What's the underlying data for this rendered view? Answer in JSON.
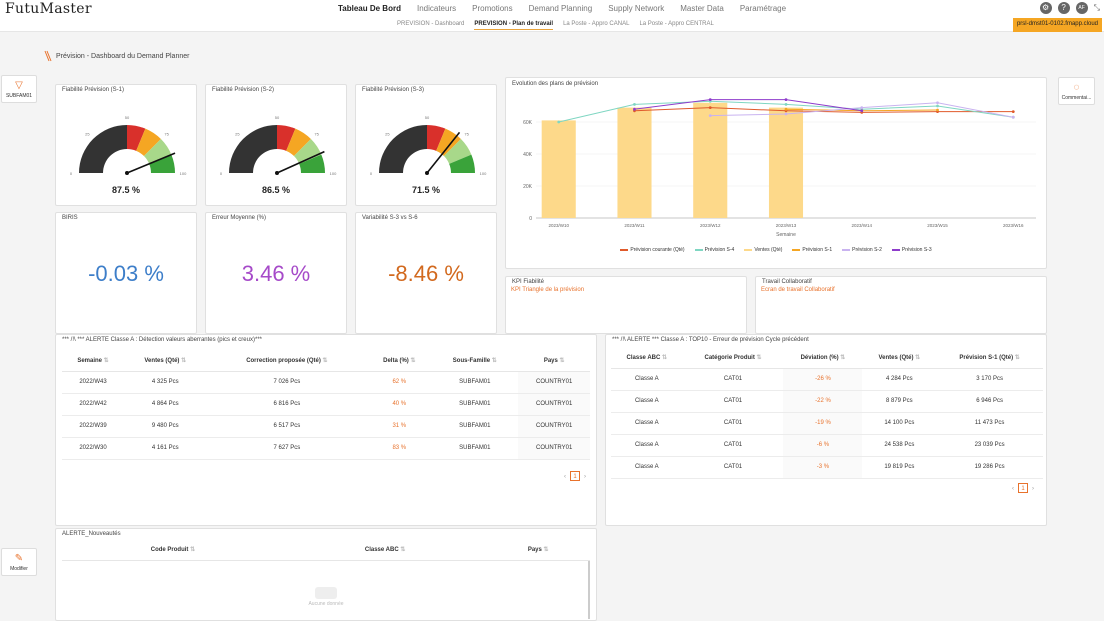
{
  "app": {
    "logo": "FutuMaster",
    "env": "prsl-dmst01-0102.fmapp.cloud",
    "user_initials": "AF"
  },
  "nav": {
    "items": [
      "Tableau De Bord",
      "Indicateurs",
      "Promotions",
      "Demand Planning",
      "Supply Network",
      "Master Data",
      "Paramétrage"
    ],
    "active": 0
  },
  "subtabs": {
    "items": [
      "PREVISION - Dashboard",
      "PREVISION - Plan de travail",
      "La Poste - Appro CANAL",
      "La Poste - Appro CENTRAL"
    ],
    "active": 1
  },
  "page": {
    "title": "Prévision - Dashboard du Demand Planner"
  },
  "side": {
    "filter_label": "SUBFAM01",
    "edit_label": "Modifier",
    "comment_label": "Commentai..."
  },
  "gauges": [
    {
      "title": "Fiabilité Prévision (S-1)",
      "value": 87.5,
      "display": "87.5 %"
    },
    {
      "title": "Fiabilité Prévision (S-2)",
      "value": 86.5,
      "display": "86.5 %"
    },
    {
      "title": "Fiabilité Prévision (S-3)",
      "value": 71.5,
      "display": "71.5 %"
    }
  ],
  "gauge_ticks": [
    "0",
    "25",
    "50",
    "75",
    "100"
  ],
  "gauge_colors": [
    "#333333",
    "#d9302b",
    "#f5a623",
    "#a8d88a",
    "#3aa33a"
  ],
  "kpis": [
    {
      "title": "BIRIS",
      "value": "-0.03 %",
      "color": "#3d7ec9"
    },
    {
      "title": "Erreur Moyenne (%)",
      "value": "3.46 %",
      "color": "#a64ac9"
    },
    {
      "title": "Variabilité S-3 vs S-6",
      "value": "-8.46 %",
      "color": "#d2691e"
    }
  ],
  "evol": {
    "title": "Evolution des plans de prévision"
  },
  "chart_data": {
    "type": "bar",
    "title": "Evolution des plans de prévision",
    "xlabel": "Semaine",
    "categories": [
      "2023/W10",
      "2023/W11",
      "2023/W12",
      "2023/W13",
      "2023/W14",
      "2023/W15",
      "2023/W16"
    ],
    "yticks": [
      "0",
      "20K",
      "40K",
      "60K"
    ],
    "ylim": [
      0,
      80000
    ],
    "series": [
      {
        "name": "Prévision courante (Qté)",
        "type": "line",
        "color": "#e05a2b",
        "values": [
          null,
          67000,
          69000,
          67000,
          66000,
          66500,
          66500
        ]
      },
      {
        "name": "Prévision S-4",
        "type": "line",
        "color": "#7fd6c2",
        "values": [
          60000,
          71000,
          73000,
          71000,
          68000,
          70000,
          63000
        ]
      },
      {
        "name": "Ventes (Qté)",
        "type": "bar",
        "color": "#fdd98a",
        "values": [
          61000,
          69000,
          72000,
          69000,
          null,
          null,
          null
        ]
      },
      {
        "name": "Prévision S-1",
        "type": "line",
        "color": "#f5a623",
        "values": [
          null,
          null,
          null,
          68000,
          67000,
          67500,
          null
        ]
      },
      {
        "name": "Prévision S-2",
        "type": "line",
        "color": "#c9b3f0",
        "values": [
          null,
          null,
          64000,
          65000,
          69000,
          72000,
          63000
        ]
      },
      {
        "name": "Prévision S-3",
        "type": "line",
        "color": "#8e3ccb",
        "values": [
          null,
          68000,
          74000,
          74000,
          67000,
          null,
          null
        ]
      }
    ],
    "legend": "bottom"
  },
  "panels": {
    "fiab": {
      "title": "KPI Fiabilité",
      "link": "KPI Triangle de la prévision"
    },
    "collab": {
      "title": "Travail Collaboratif",
      "link": "Ecran de travail Collaboratif"
    }
  },
  "alert1": {
    "title": "*** /!\\ *** ALERTE Classe A : Détection valeurs aberrantes (pics et creux)***",
    "columns": [
      "Semaine",
      "Ventes (Qté)",
      "Correction proposée (Qté)",
      "Delta (%)",
      "Sous-Famille",
      "Pays"
    ],
    "rows": [
      [
        "2022/W43",
        "4 325 Pcs",
        "7 026 Pcs",
        "62 %",
        "SUBFAM01",
        "COUNTRY01"
      ],
      [
        "2022/W42",
        "4 864 Pcs",
        "6 816 Pcs",
        "40 %",
        "SUBFAM01",
        "COUNTRY01"
      ],
      [
        "2022/W39",
        "9 480 Pcs",
        "6 517 Pcs",
        "31 %",
        "SUBFAM01",
        "COUNTRY01"
      ],
      [
        "2022/W30",
        "4 161 Pcs",
        "7 627 Pcs",
        "83 %",
        "SUBFAM01",
        "COUNTRY01"
      ]
    ],
    "page": "1"
  },
  "alert2": {
    "title": "*** /!\\ ALERTE *** Classe A : TOP10 - Erreur de prévision Cycle précédent",
    "columns": [
      "Classe ABC",
      "Catégorie Produit",
      "Déviation (%)",
      "Ventes (Qté)",
      "Prévision S-1 (Qté)"
    ],
    "rows": [
      [
        "Classe A",
        "CAT01",
        "-26 %",
        "4 284 Pcs",
        "3 170 Pcs"
      ],
      [
        "Classe A",
        "CAT01",
        "-22 %",
        "8 879 Pcs",
        "6 946 Pcs"
      ],
      [
        "Classe A",
        "CAT01",
        "-19 %",
        "14 100 Pcs",
        "11 473 Pcs"
      ],
      [
        "Classe A",
        "CAT01",
        "-6 %",
        "24 538 Pcs",
        "23 039 Pcs"
      ],
      [
        "Classe A",
        "CAT01",
        "-3 %",
        "19 819 Pcs",
        "19 286 Pcs"
      ]
    ],
    "page": "1"
  },
  "alert3": {
    "title": "ALERTE_Nouveautés",
    "columns": [
      "Code Produit",
      "Classe ABC",
      "Pays"
    ],
    "empty": "Aucune donnée"
  }
}
